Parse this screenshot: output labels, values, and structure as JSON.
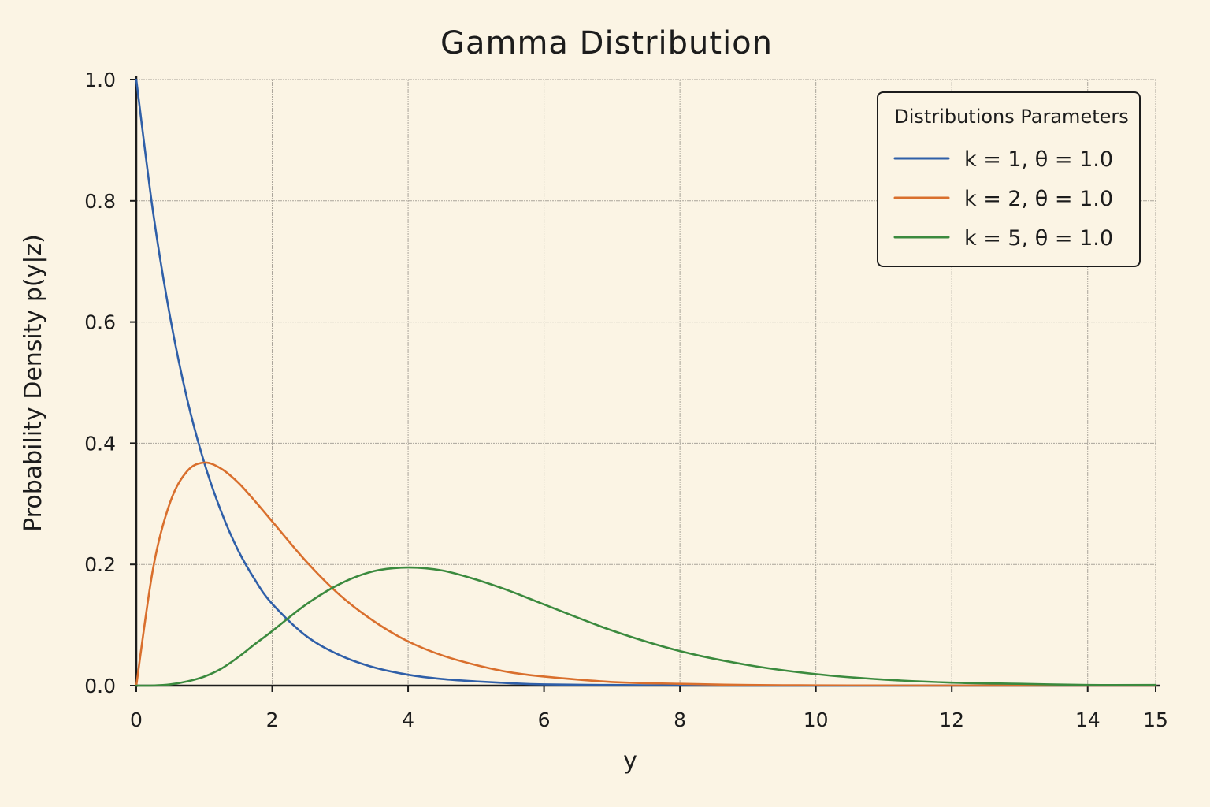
{
  "chart_data": {
    "type": "line",
    "title": "Gamma Distribution",
    "xlabel": "y",
    "ylabel": "Probability Density p(y|z)",
    "xlim": [
      0,
      15
    ],
    "ylim": [
      0,
      1.0
    ],
    "x_ticks": [
      0,
      2,
      4,
      6,
      8,
      10,
      12,
      14,
      15
    ],
    "y_ticks": [
      "0.0",
      "0.2",
      "0.4",
      "0.6",
      "0.8",
      "1.0"
    ],
    "grid": true,
    "legend": {
      "title": "Distributions Parameters",
      "placement": "top-right"
    },
    "x": [
      0,
      0.25,
      0.5,
      0.75,
      1,
      1.25,
      1.5,
      1.75,
      2,
      2.5,
      3,
      3.5,
      4,
      4.5,
      5,
      5.5,
      6,
      7,
      8,
      9,
      10,
      11,
      12,
      13,
      14,
      15
    ],
    "series": [
      {
        "name": "k = 1, θ = 1.0",
        "color": "#2f5fa8",
        "values": [
          1.0,
          0.779,
          0.607,
          0.472,
          0.368,
          0.287,
          0.223,
          0.174,
          0.135,
          0.082,
          0.05,
          0.03,
          0.018,
          0.011,
          0.007,
          0.004,
          0.002,
          0.001,
          0.0003,
          0.0001,
          0.0,
          0.0,
          0.0,
          0.0,
          0.0,
          0.0
        ]
      },
      {
        "name": "k = 2, θ = 1.0",
        "color": "#d96f2d",
        "values": [
          0.0,
          0.195,
          0.303,
          0.354,
          0.368,
          0.358,
          0.335,
          0.304,
          0.271,
          0.205,
          0.149,
          0.106,
          0.073,
          0.05,
          0.034,
          0.022,
          0.015,
          0.006,
          0.003,
          0.001,
          0.0005,
          0.0002,
          0.0001,
          0.0,
          0.0,
          0.0
        ]
      },
      {
        "name": "k = 5, θ = 1.0",
        "color": "#3b8a3e",
        "values": [
          0.0,
          0.0001,
          0.002,
          0.007,
          0.015,
          0.028,
          0.047,
          0.069,
          0.09,
          0.134,
          0.168,
          0.189,
          0.195,
          0.19,
          0.175,
          0.156,
          0.134,
          0.091,
          0.057,
          0.034,
          0.019,
          0.01,
          0.005,
          0.003,
          0.001,
          0.001
        ]
      }
    ]
  }
}
